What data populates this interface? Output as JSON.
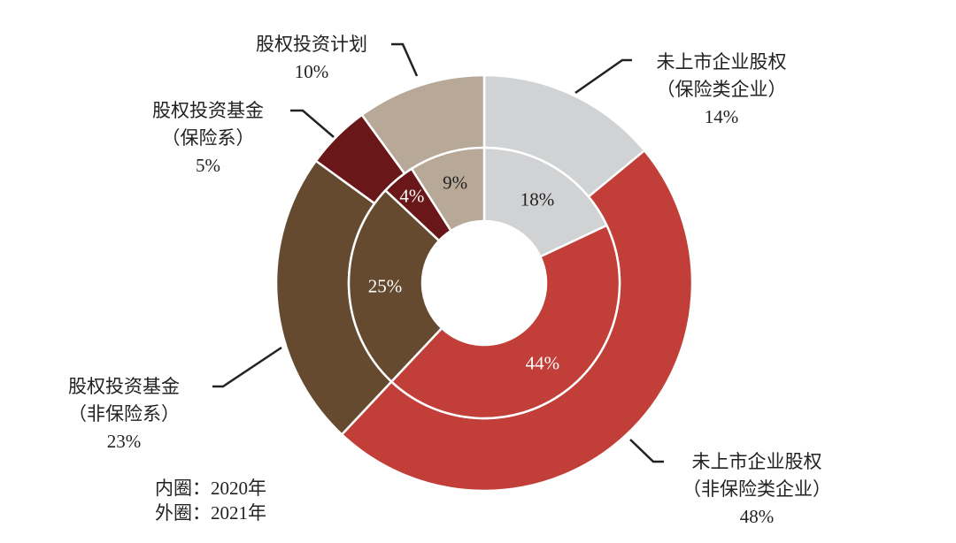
{
  "chart_data": {
    "type": "pie",
    "subtype": "nested-donut",
    "categories": [
      "未上市企业股权（保险类企业）",
      "未上市企业股权（非保险类企业）",
      "股权投资基金（非保险系）",
      "股权投资基金（保险系）",
      "股权投资计划"
    ],
    "category_lines": [
      [
        "未上市企业股权",
        "（保险类企业）"
      ],
      [
        "未上市企业股权",
        "（非保险类企业）"
      ],
      [
        "股权投资基金",
        "（非保险系）"
      ],
      [
        "股权投资基金",
        "（保险系）"
      ],
      [
        "股权投资计划"
      ]
    ],
    "colors": [
      "#d1d2d4",
      "#c13e39",
      "#654a30",
      "#6a1719",
      "#b8a898"
    ],
    "series": [
      {
        "name": "内圈：2020年",
        "ring": "inner",
        "values": [
          18,
          44,
          25,
          4,
          9
        ],
        "labels": [
          "18%",
          "44%",
          "25%",
          "4%",
          "9%"
        ],
        "label_colors": [
          "#222222",
          "#ffffff",
          "#ffffff",
          "#ffffff",
          "#222222"
        ]
      },
      {
        "name": "外圈：2021年",
        "ring": "outer",
        "values": [
          14,
          48,
          23,
          5,
          10
        ],
        "labels": [
          "14%",
          "48%",
          "23%",
          "5%",
          "10%"
        ]
      }
    ],
    "start": "12 o'clock, clockwise",
    "legend": [
      "内圈：2020年",
      "外圈：2021年"
    ],
    "legend_position": "bottom-left"
  }
}
